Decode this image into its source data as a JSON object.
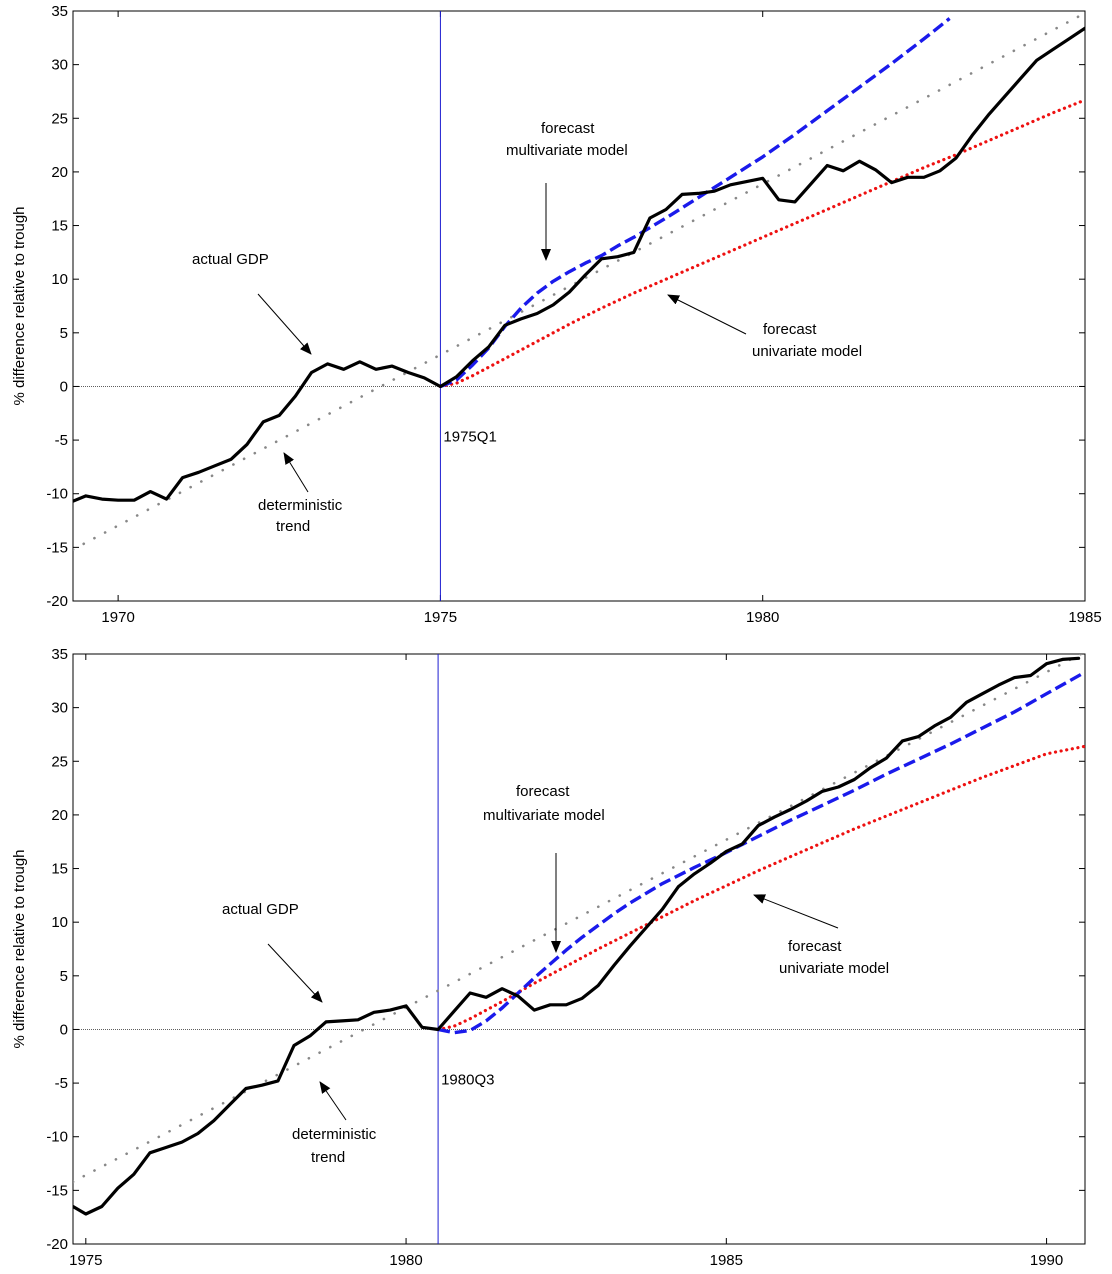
{
  "chart_data": [
    {
      "type": "line",
      "xlim": [
        1969.3,
        1985
      ],
      "ylim": [
        -20,
        35
      ],
      "xticks": [
        1970,
        1975,
        1980,
        1985
      ],
      "yticks": [
        -20,
        -15,
        -10,
        -5,
        0,
        5,
        10,
        15,
        20,
        25,
        30,
        35
      ],
      "ylabel": "% difference relative to trough",
      "trough_x": 1975,
      "trough_label": "1975Q1",
      "series": [
        {
          "role": "actual",
          "color": "#000000",
          "x": [
            1969.3,
            1969.5,
            1969.75,
            1970.0,
            1970.25,
            1970.5,
            1970.75,
            1971.0,
            1971.25,
            1971.5,
            1971.75,
            1972.0,
            1972.25,
            1972.5,
            1972.75,
            1973.0,
            1973.25,
            1973.5,
            1973.75,
            1974.0,
            1974.25,
            1974.5,
            1974.75,
            1975.0,
            1975.25,
            1975.5,
            1975.75,
            1976.0,
            1976.25,
            1976.5,
            1976.75,
            1977.0,
            1977.25,
            1977.5,
            1977.75,
            1978.0,
            1978.25,
            1978.5,
            1978.75,
            1979.0,
            1979.25,
            1979.5,
            1979.75,
            1980.0,
            1980.25,
            1980.5,
            1980.75,
            1981.0,
            1981.25,
            1981.5,
            1981.75,
            1982.0,
            1982.25,
            1982.5,
            1982.75,
            1983.0,
            1983.25,
            1983.5,
            1983.75,
            1984.0,
            1984.25,
            1984.5,
            1984.75,
            1985.0
          ],
          "y": [
            -10.7,
            -10.2,
            -10.5,
            -10.6,
            -10.6,
            -9.8,
            -10.5,
            -8.5,
            -8.0,
            -7.4,
            -6.8,
            -5.4,
            -3.3,
            -2.7,
            -0.9,
            1.3,
            2.1,
            1.6,
            2.3,
            1.6,
            1.9,
            1.3,
            0.8,
            0.0,
            0.9,
            2.4,
            3.7,
            5.7,
            6.3,
            6.8,
            7.6,
            8.8,
            10.4,
            11.9,
            12.1,
            12.5,
            15.7,
            16.5,
            17.9,
            18.0,
            18.2,
            18.8,
            19.1,
            19.4,
            17.4,
            17.2,
            18.9,
            20.6,
            20.1,
            21.0,
            20.2,
            19.0,
            19.5,
            19.5,
            20.1,
            21.3,
            23.4,
            25.3,
            27.0,
            28.7,
            30.4,
            31.4,
            32.4,
            33.4
          ]
        },
        {
          "role": "multivariate",
          "color": "#1a1aeb",
          "x": [
            1975.0,
            1975.25,
            1975.5,
            1975.75,
            1976.0,
            1976.25,
            1976.5,
            1976.75,
            1977.0,
            1977.25,
            1977.5,
            1977.75,
            1978.0,
            1978.5,
            1979.0,
            1979.5,
            1980.0,
            1980.5,
            1981.0,
            1981.5,
            1982.0,
            1982.5,
            1982.9
          ],
          "y": [
            0.0,
            0.6,
            2.0,
            3.6,
            5.6,
            7.3,
            8.7,
            9.8,
            10.7,
            11.5,
            12.2,
            13.1,
            13.9,
            15.7,
            17.6,
            19.5,
            21.4,
            23.5,
            25.7,
            27.9,
            30.1,
            32.4,
            34.3
          ]
        },
        {
          "role": "univariate",
          "color": "#ee1111",
          "x": [
            1975.0,
            1975.25,
            1975.5,
            1976.0,
            1976.5,
            1977.0,
            1977.5,
            1978.0,
            1978.5,
            1979.0,
            1979.5,
            1980.0,
            1980.5,
            1981.0,
            1981.5,
            1982.0,
            1982.5,
            1983.0,
            1983.5,
            1984.0,
            1984.5,
            1985.0
          ],
          "y": [
            0.0,
            0.3,
            1.0,
            2.6,
            4.2,
            5.8,
            7.3,
            8.7,
            10.0,
            11.3,
            12.6,
            13.9,
            15.2,
            16.5,
            17.8,
            19.1,
            20.4,
            21.6,
            22.9,
            24.2,
            25.5,
            26.7
          ]
        },
        {
          "role": "trend",
          "color": "#888888",
          "x": [
            1969.3,
            1985
          ],
          "y": [
            -15.2,
            34.8
          ]
        }
      ],
      "annotations": [
        {
          "id": "actual",
          "lines": [
            "actual GDP"
          ]
        },
        {
          "id": "trend",
          "lines": [
            "deterministic",
            "trend"
          ]
        },
        {
          "id": "multi",
          "lines": [
            "forecast",
            "multivariate model"
          ]
        },
        {
          "id": "uni",
          "lines": [
            "forecast",
            "univariate model"
          ]
        }
      ]
    },
    {
      "type": "line",
      "xlim": [
        1974.8,
        1990.6
      ],
      "ylim": [
        -20,
        35
      ],
      "xticks": [
        1975,
        1980,
        1985,
        1990
      ],
      "yticks": [
        -20,
        -15,
        -10,
        -5,
        0,
        5,
        10,
        15,
        20,
        25,
        30,
        35
      ],
      "ylabel": "% difference relative to trough",
      "trough_x": 1980.5,
      "trough_label": "1980Q3",
      "series": [
        {
          "role": "actual",
          "color": "#000000",
          "x": [
            1974.8,
            1975.0,
            1975.25,
            1975.5,
            1975.75,
            1976.0,
            1976.25,
            1976.5,
            1976.75,
            1977.0,
            1977.25,
            1977.5,
            1977.75,
            1978.0,
            1978.25,
            1978.5,
            1978.75,
            1979.0,
            1979.25,
            1979.5,
            1979.75,
            1980.0,
            1980.25,
            1980.5,
            1980.75,
            1981.0,
            1981.25,
            1981.5,
            1981.75,
            1982.0,
            1982.25,
            1982.5,
            1982.75,
            1983.0,
            1983.25,
            1983.5,
            1983.75,
            1984.0,
            1984.25,
            1984.5,
            1984.75,
            1985.0,
            1985.25,
            1985.5,
            1985.75,
            1986.0,
            1986.25,
            1986.5,
            1986.75,
            1987.0,
            1987.25,
            1987.5,
            1987.75,
            1988.0,
            1988.25,
            1988.5,
            1988.75,
            1989.0,
            1989.25,
            1989.5,
            1989.75,
            1990.0,
            1990.25,
            1990.5
          ],
          "y": [
            -16.5,
            -17.2,
            -16.5,
            -14.8,
            -13.5,
            -11.5,
            -11.0,
            -10.5,
            -9.7,
            -8.5,
            -7.0,
            -5.5,
            -5.2,
            -4.8,
            -1.5,
            -0.6,
            0.7,
            0.8,
            0.9,
            1.6,
            1.8,
            2.2,
            0.2,
            0.0,
            1.7,
            3.4,
            3.0,
            3.8,
            3.1,
            1.8,
            2.3,
            2.3,
            2.9,
            4.1,
            6.0,
            7.8,
            9.5,
            11.2,
            13.3,
            14.5,
            15.5,
            16.6,
            17.3,
            19.0,
            19.8,
            20.5,
            21.3,
            22.2,
            22.6,
            23.3,
            24.4,
            25.3,
            26.9,
            27.3,
            28.3,
            29.1,
            30.5,
            31.3,
            32.1,
            32.8,
            33.0,
            34.1,
            34.5,
            34.6
          ]
        },
        {
          "role": "multivariate",
          "color": "#1a1aeb",
          "x": [
            1980.5,
            1980.75,
            1981.0,
            1981.25,
            1981.5,
            1981.75,
            1982.0,
            1982.25,
            1982.5,
            1982.75,
            1983.0,
            1983.25,
            1983.5,
            1984.0,
            1984.5,
            1985.0,
            1985.5,
            1986.0,
            1986.5,
            1987.0,
            1987.5,
            1988.0,
            1988.5,
            1989.0,
            1989.5,
            1990.0,
            1990.6
          ],
          "y": [
            0.0,
            -0.3,
            -0.1,
            0.8,
            2.0,
            3.4,
            4.8,
            6.1,
            7.4,
            8.6,
            9.7,
            10.8,
            11.8,
            13.6,
            15.1,
            16.5,
            18.0,
            19.5,
            20.9,
            22.3,
            23.8,
            25.2,
            26.6,
            28.1,
            29.6,
            31.3,
            33.3
          ]
        },
        {
          "role": "univariate",
          "color": "#ee1111",
          "x": [
            1980.5,
            1980.75,
            1981.0,
            1981.5,
            1982.0,
            1982.5,
            1983.0,
            1983.5,
            1984.0,
            1984.5,
            1985.0,
            1985.5,
            1986.0,
            1986.5,
            1987.0,
            1987.5,
            1988.0,
            1988.5,
            1989.0,
            1989.5,
            1990.0,
            1990.6
          ],
          "y": [
            0.0,
            0.3,
            1.0,
            2.6,
            4.3,
            5.9,
            7.5,
            9.0,
            10.5,
            12.0,
            13.4,
            14.8,
            16.1,
            17.4,
            18.7,
            19.9,
            21.1,
            22.3,
            23.5,
            24.6,
            25.7,
            26.4
          ]
        },
        {
          "role": "trend",
          "color": "#888888",
          "x": [
            1974.8,
            1990.6
          ],
          "y": [
            -14.2,
            35.2
          ]
        }
      ],
      "annotations": [
        {
          "id": "actual",
          "lines": [
            "actual GDP"
          ]
        },
        {
          "id": "trend",
          "lines": [
            "deterministic",
            "trend"
          ]
        },
        {
          "id": "multi",
          "lines": [
            "forecast",
            "multivariate model"
          ]
        },
        {
          "id": "uni",
          "lines": [
            "forecast",
            "univariate model"
          ]
        }
      ]
    }
  ]
}
